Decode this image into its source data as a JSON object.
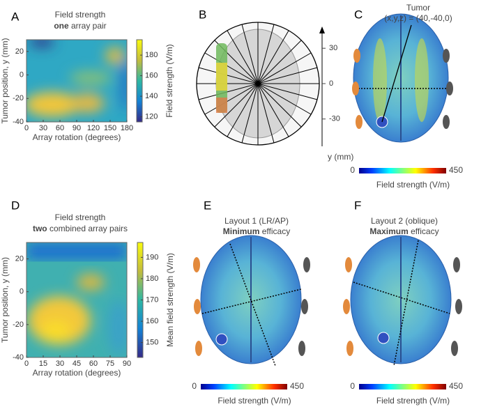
{
  "panels": [
    {
      "letter": "A",
      "title": "Field strength",
      "title_bold": "one",
      "title_rest": " array pair",
      "xlabel": "Array rotation (degrees)",
      "ylabel": "Tumor position, y (mm)",
      "xlim": [
        0,
        180
      ],
      "xticks": [
        0,
        30,
        60,
        90,
        120,
        150,
        180
      ],
      "ylim": [
        -40,
        30
      ],
      "yticks": [
        -40,
        -20,
        0,
        20
      ],
      "colorbar_label": "Field strength (V/m)",
      "clim": [
        115,
        195
      ],
      "colorbar_ticks": [
        120,
        140,
        160,
        180
      ]
    },
    {
      "letter": "B",
      "ylim": [
        -52,
        52
      ],
      "yticks": [
        30,
        0,
        -30
      ],
      "ylabel": "y (mm)"
    },
    {
      "letter": "C",
      "annotation": "Tumor",
      "annotation_coords": "(x,y,z) = (40,-40,0)",
      "clim": [
        0,
        450
      ],
      "colorbar_ticks": [
        0,
        450
      ],
      "colorbar_label": "Field strength (V/m)"
    },
    {
      "letter": "D",
      "title": "Field strength",
      "title_bold": "two",
      "title_rest": " combined array pairs",
      "xlabel": "Array rotation (degrees)",
      "ylabel": "Tumor position, y (mm)",
      "xlim": [
        0,
        90
      ],
      "xticks": [
        0,
        15,
        30,
        45,
        60,
        75,
        90
      ],
      "ylim": [
        -40,
        30
      ],
      "yticks": [
        -40,
        -20,
        0,
        20
      ],
      "colorbar_label": "Mean field strength (V/m)",
      "clim": [
        143,
        197
      ],
      "colorbar_ticks": [
        150,
        160,
        170,
        180,
        190
      ]
    },
    {
      "letter": "E",
      "title": "Layout 1 (LR/AP)",
      "title_bold": "Minimum",
      "title_rest": " efficacy",
      "clim": [
        0,
        450
      ],
      "colorbar_ticks": [
        0,
        450
      ],
      "colorbar_label": "Field strength (V/m)"
    },
    {
      "letter": "F",
      "title": "Layout 2 (oblique)",
      "title_bold": "Maximum",
      "title_rest": " efficacy",
      "clim": [
        0,
        450
      ],
      "colorbar_ticks": [
        0,
        450
      ],
      "colorbar_label": "Field strength (V/m)"
    }
  ]
}
